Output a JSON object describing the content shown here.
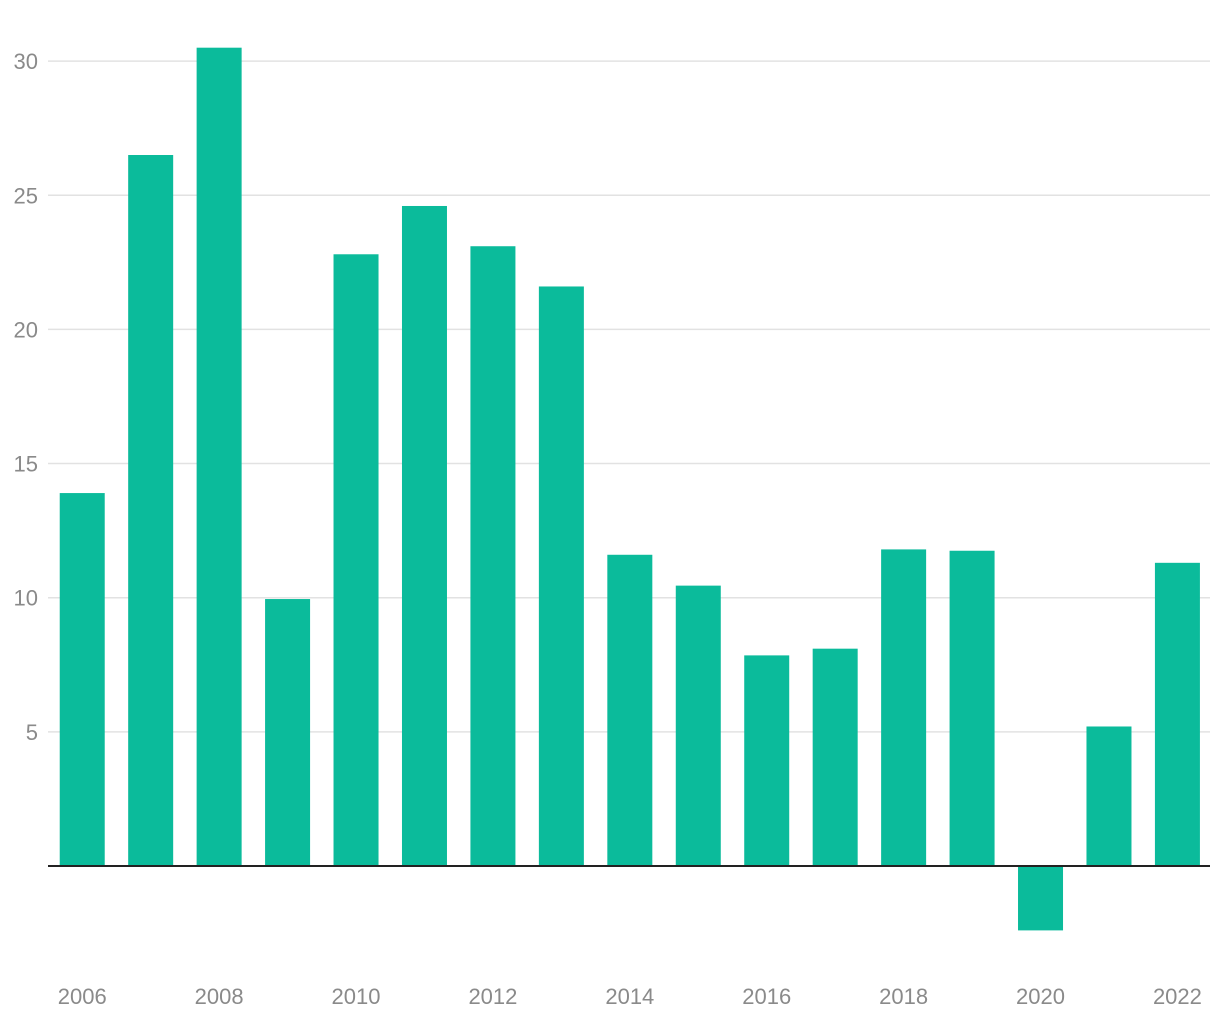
{
  "chart_data": {
    "type": "bar",
    "title": "",
    "xlabel": "",
    "ylabel": "",
    "categories": [
      "2006",
      "2007",
      "2008",
      "2009",
      "2010",
      "2011",
      "2012",
      "2013",
      "2014",
      "2015",
      "2016",
      "2017",
      "2018",
      "2019",
      "2020",
      "2021",
      "2022"
    ],
    "series": [
      {
        "name": "",
        "values": [
          13.9,
          26.5,
          30.5,
          9.95,
          22.8,
          24.6,
          23.1,
          21.6,
          11.6,
          10.45,
          7.85,
          8.1,
          11.8,
          11.75,
          -2.4,
          5.2,
          11.3
        ]
      }
    ],
    "ylim": [
      -3.8,
      31
    ],
    "yticks": [
      5,
      10,
      15,
      20,
      25,
      30
    ],
    "ytick_labels": [
      "5",
      "10",
      "15",
      "20",
      "25",
      "30"
    ],
    "xtick_labels": [
      "2006",
      "2008",
      "2010",
      "2012",
      "2014",
      "2016",
      "2018",
      "2020",
      "2022"
    ],
    "grid": true,
    "bar_color": "#0bbb9b",
    "grid_color": "#e2e2e2",
    "zero_line_color": "#222222",
    "label_color": "#8a8a8a"
  }
}
